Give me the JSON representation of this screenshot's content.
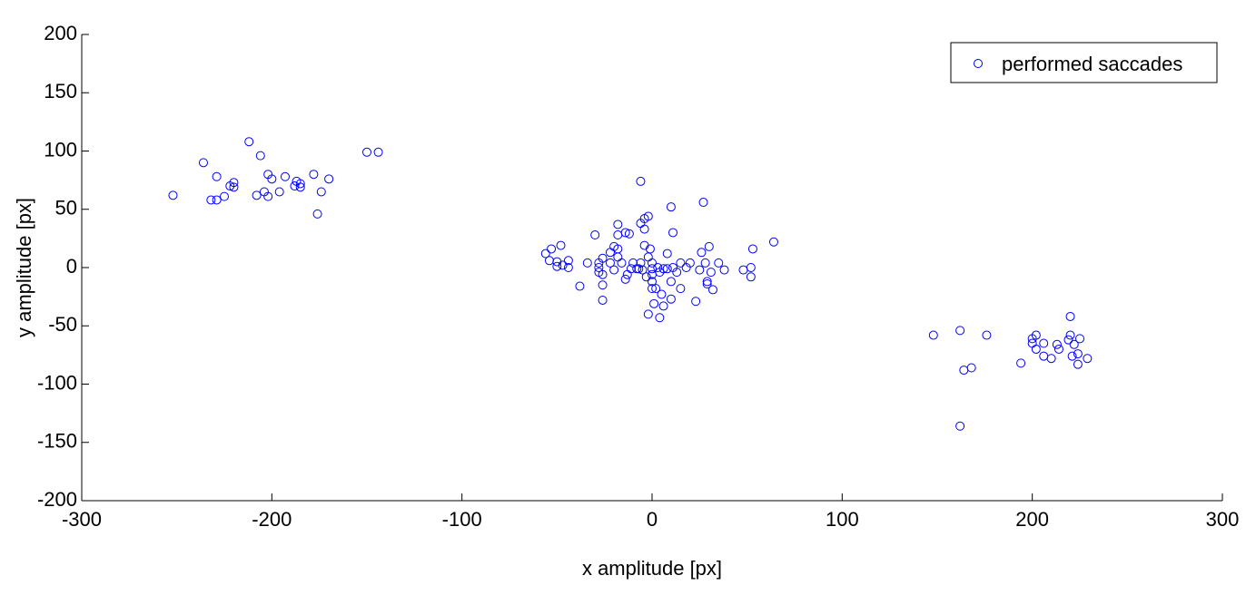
{
  "chart_data": {
    "type": "scatter",
    "xlabel": "x amplitude [px]",
    "ylabel": "y amplitude  [px]",
    "xlim": [
      -300,
      300
    ],
    "ylim": [
      -200,
      200
    ],
    "xticks": [
      -300,
      -200,
      -100,
      0,
      100,
      200,
      300
    ],
    "yticks": [
      -200,
      -150,
      -100,
      -50,
      0,
      50,
      100,
      150,
      200
    ],
    "grid": false,
    "legend": "upper right",
    "x": [
      -252,
      -236,
      -229,
      -232,
      -229,
      -225,
      -222,
      -220,
      -220,
      -212,
      -208,
      -206,
      -204,
      -202,
      -202,
      -200,
      -196,
      -193,
      -188,
      -187,
      -185,
      -185,
      -178,
      -176,
      -174,
      -170,
      -150,
      -144,
      148,
      162,
      162,
      164,
      168,
      176,
      194,
      200,
      200,
      202,
      202,
      206,
      206,
      210,
      213,
      214,
      219,
      220,
      220,
      221,
      222,
      224,
      224,
      225,
      229,
      -6,
      27,
      10,
      -4,
      -2,
      -6,
      -4,
      -18,
      -30,
      -14,
      -12,
      -18,
      11,
      64,
      30,
      53,
      -48,
      -53,
      -56,
      -54,
      -50,
      -50,
      -44,
      -44,
      -47,
      -38,
      -34,
      -28,
      -28,
      -28,
      -26,
      -26,
      -26,
      -26,
      -22,
      -22,
      -20,
      -20,
      -18,
      -18,
      -16,
      -14,
      -13,
      -11,
      -10,
      -8,
      -6,
      -5,
      -4,
      -2,
      -1,
      0,
      0,
      0,
      0,
      0,
      -2,
      1,
      4,
      4,
      5,
      6,
      8,
      8,
      10,
      10,
      11,
      13,
      15,
      15,
      18,
      20,
      23,
      25,
      26,
      28,
      29,
      31,
      32,
      35,
      38,
      48,
      52,
      52,
      29,
      3,
      6,
      -7,
      -3,
      2
    ],
    "series": [
      {
        "name": "performed saccades",
        "color": "#0000ff",
        "values": [
          62,
          90,
          78,
          58,
          58,
          61,
          70,
          73,
          69,
          108,
          62,
          96,
          65,
          80,
          61,
          76,
          65,
          78,
          70,
          74,
          69,
          72,
          80,
          46,
          65,
          76,
          99,
          99,
          -58,
          -54,
          -136,
          -88,
          -86,
          -58,
          -82,
          -61,
          -65,
          -58,
          -70,
          -65,
          -76,
          -78,
          -66,
          -70,
          -62,
          -42,
          -58,
          -76,
          -66,
          -74,
          -83,
          -61,
          -78,
          74,
          56,
          52,
          42,
          44,
          38,
          33,
          37,
          28,
          30,
          29,
          28,
          30,
          22,
          18,
          16,
          19,
          16,
          12,
          6,
          1,
          5,
          6,
          0,
          2,
          -16,
          4,
          4,
          0,
          -4,
          8,
          -6,
          -15,
          -28,
          13,
          4,
          18,
          -2,
          16,
          9,
          4,
          -10,
          -6,
          -1,
          4,
          -1,
          4,
          -2,
          19,
          9,
          16,
          4,
          -1,
          -6,
          -12,
          -18,
          -40,
          -31,
          -4,
          -43,
          -23,
          -33,
          -1,
          12,
          -27,
          -12,
          0,
          -4,
          4,
          -18,
          0,
          4,
          -29,
          -2,
          13,
          4,
          -12,
          -4,
          -19,
          4,
          -2,
          -2,
          0,
          -8,
          -14,
          0,
          -1,
          -1,
          -8,
          -18
        ]
      }
    ]
  }
}
